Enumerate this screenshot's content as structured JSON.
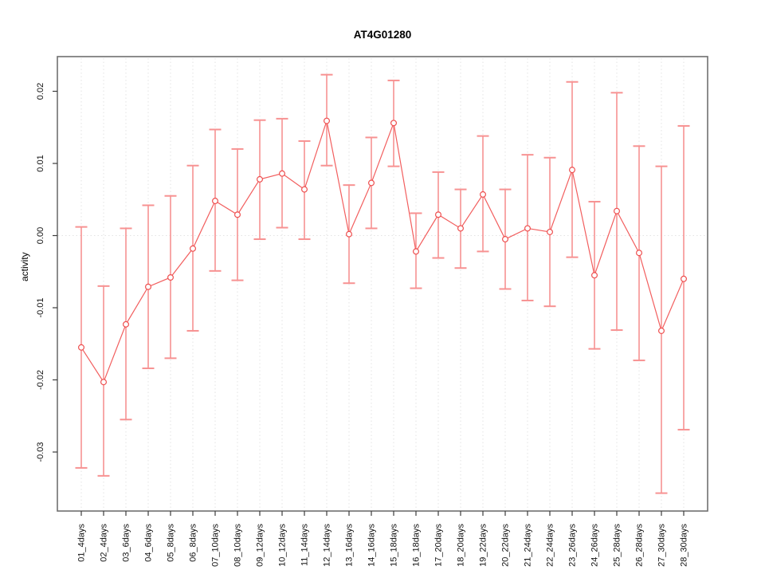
{
  "window": {
    "background": "#ffffff"
  },
  "chart_data": {
    "type": "line",
    "title": "AT4G01280",
    "xlabel": "",
    "ylabel": "activity",
    "legend": "none",
    "grid": "vertical dotted gridline at every category; dotted horizontal line at y=0",
    "marker": "open-circle",
    "categories": [
      "01_4days",
      "02_4days",
      "03_6days",
      "04_6days",
      "05_8days",
      "06_8days",
      "07_10days",
      "08_10days",
      "09_12days",
      "10_12days",
      "11_14days",
      "12_14days",
      "13_16days",
      "14_16days",
      "15_18days",
      "16_18days",
      "17_20days",
      "18_20days",
      "19_22days",
      "20_22days",
      "21_24days",
      "22_24days",
      "23_26days",
      "24_26days",
      "25_28days",
      "26_28days",
      "27_30days",
      "28_30days"
    ],
    "series": [
      {
        "name": "activity",
        "values": [
          -0.0155,
          -0.0203,
          -0.0123,
          -0.0071,
          -0.0058,
          -0.0018,
          0.0048,
          0.0029,
          0.0078,
          0.0086,
          0.0064,
          0.0159,
          0.0002,
          0.0073,
          0.0156,
          -0.0022,
          0.0029,
          0.001,
          0.0057,
          -0.0005,
          0.001,
          0.0005,
          0.0091,
          -0.0055,
          0.0034,
          -0.0024,
          -0.0132,
          -0.006
        ],
        "error_high": [
          0.0012,
          -0.007,
          0.001,
          0.0042,
          0.0055,
          0.0097,
          0.0147,
          0.012,
          0.016,
          0.0162,
          0.0131,
          0.0223,
          0.007,
          0.0136,
          0.0215,
          0.0031,
          0.0088,
          0.0064,
          0.0138,
          0.0064,
          0.0112,
          0.0108,
          0.0213,
          0.0047,
          0.0198,
          0.0124,
          0.0096,
          0.0152
        ],
        "error_low": [
          -0.0322,
          -0.0333,
          -0.0255,
          -0.0184,
          -0.017,
          -0.0132,
          -0.0049,
          -0.0062,
          -0.0005,
          0.0011,
          -0.0005,
          0.0097,
          -0.0066,
          0.001,
          0.0096,
          -0.0073,
          -0.0031,
          -0.0045,
          -0.0022,
          -0.0074,
          -0.009,
          -0.0098,
          -0.003,
          -0.0157,
          -0.0131,
          -0.0173,
          -0.0357,
          -0.0269
        ]
      }
    ],
    "yticks": [
      {
        "label": "0.02",
        "value": 0.02
      },
      {
        "label": "0.01",
        "value": 0.01
      },
      {
        "label": "0.00",
        "value": 0.0
      },
      {
        "label": "-0.01",
        "value": -0.01
      },
      {
        "label": "-0.02",
        "value": -0.02
      },
      {
        "label": "-0.03",
        "value": -0.03
      }
    ],
    "ylim": [
      -0.0382,
      0.0248
    ],
    "colors": {
      "error_bar": "#f79292",
      "series_line": "#f25e5e",
      "marker_stroke": "#ee4f4f",
      "marker_fill": "#ffffff",
      "axis_box": "#6f6f6f",
      "tick": "#3c3c3c",
      "gridline": "#e3e3e3",
      "zero_line": "#e3e3e3",
      "text": "#111111"
    }
  }
}
